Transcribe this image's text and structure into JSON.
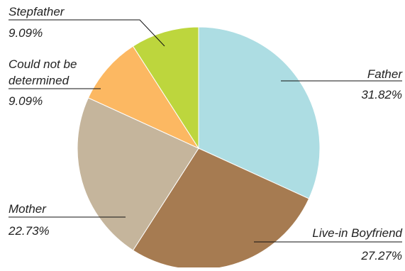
{
  "chart_data": {
    "type": "pie",
    "title": "",
    "start_angle_deg": 90,
    "direction": "clockwise",
    "slices": [
      {
        "label": "Father",
        "value": 31.82,
        "value_text": "31.82%",
        "color": "#ADDDE3"
      },
      {
        "label": "Live-in Boyfriend",
        "value": 27.27,
        "value_text": "27.27%",
        "color": "#A67B51"
      },
      {
        "label": "Mother",
        "value": 22.73,
        "value_text": "22.73%",
        "color": "#C5B59C"
      },
      {
        "label_lines": [
          "Could not be",
          "determined"
        ],
        "value": 9.09,
        "value_text": "9.09%",
        "color": "#FCB862"
      },
      {
        "label": "Stepfather",
        "value": 9.09,
        "value_text": "9.09%",
        "color": "#BDD63D"
      }
    ]
  }
}
